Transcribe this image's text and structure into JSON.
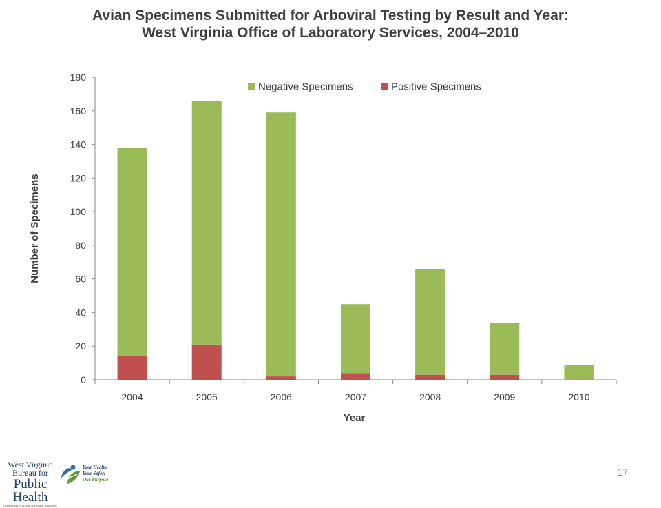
{
  "slide": {
    "title_line1": "Avian Specimens Submitted for Arboviral Testing by Result and Year:",
    "title_line2": "West Virginia Office of Laboratory Services, 2004–2010",
    "page_number": "17"
  },
  "logo": {
    "line1": "West Virginia",
    "line2": "Bureau for",
    "line3": "Public Health",
    "line4": "Department of Health & Human Resources",
    "tag1": "Your Health",
    "tag2": "Your Safety",
    "tag3": "Our Purpose"
  },
  "colors": {
    "negative": "#9bbb59",
    "positive": "#c0504d",
    "axis": "#868686",
    "text": "#404040"
  },
  "chart_data": {
    "type": "bar",
    "stacked": true,
    "xlabel": "Year",
    "ylabel": "Number of Specimens",
    "categories": [
      "2004",
      "2005",
      "2006",
      "2007",
      "2008",
      "2009",
      "2010"
    ],
    "series": [
      {
        "name": "Positive Specimens",
        "values": [
          14,
          21,
          2,
          4,
          3,
          3,
          0
        ]
      },
      {
        "name": "Negative Specimens",
        "values": [
          124,
          145,
          157,
          41,
          63,
          31,
          9
        ]
      }
    ],
    "legend_order": [
      "Negative Specimens",
      "Positive Specimens"
    ],
    "ylim": [
      0,
      180
    ],
    "yticks": [
      0,
      20,
      40,
      60,
      80,
      100,
      120,
      140,
      160,
      180
    ],
    "grid": false,
    "legend_position": "top-right"
  }
}
